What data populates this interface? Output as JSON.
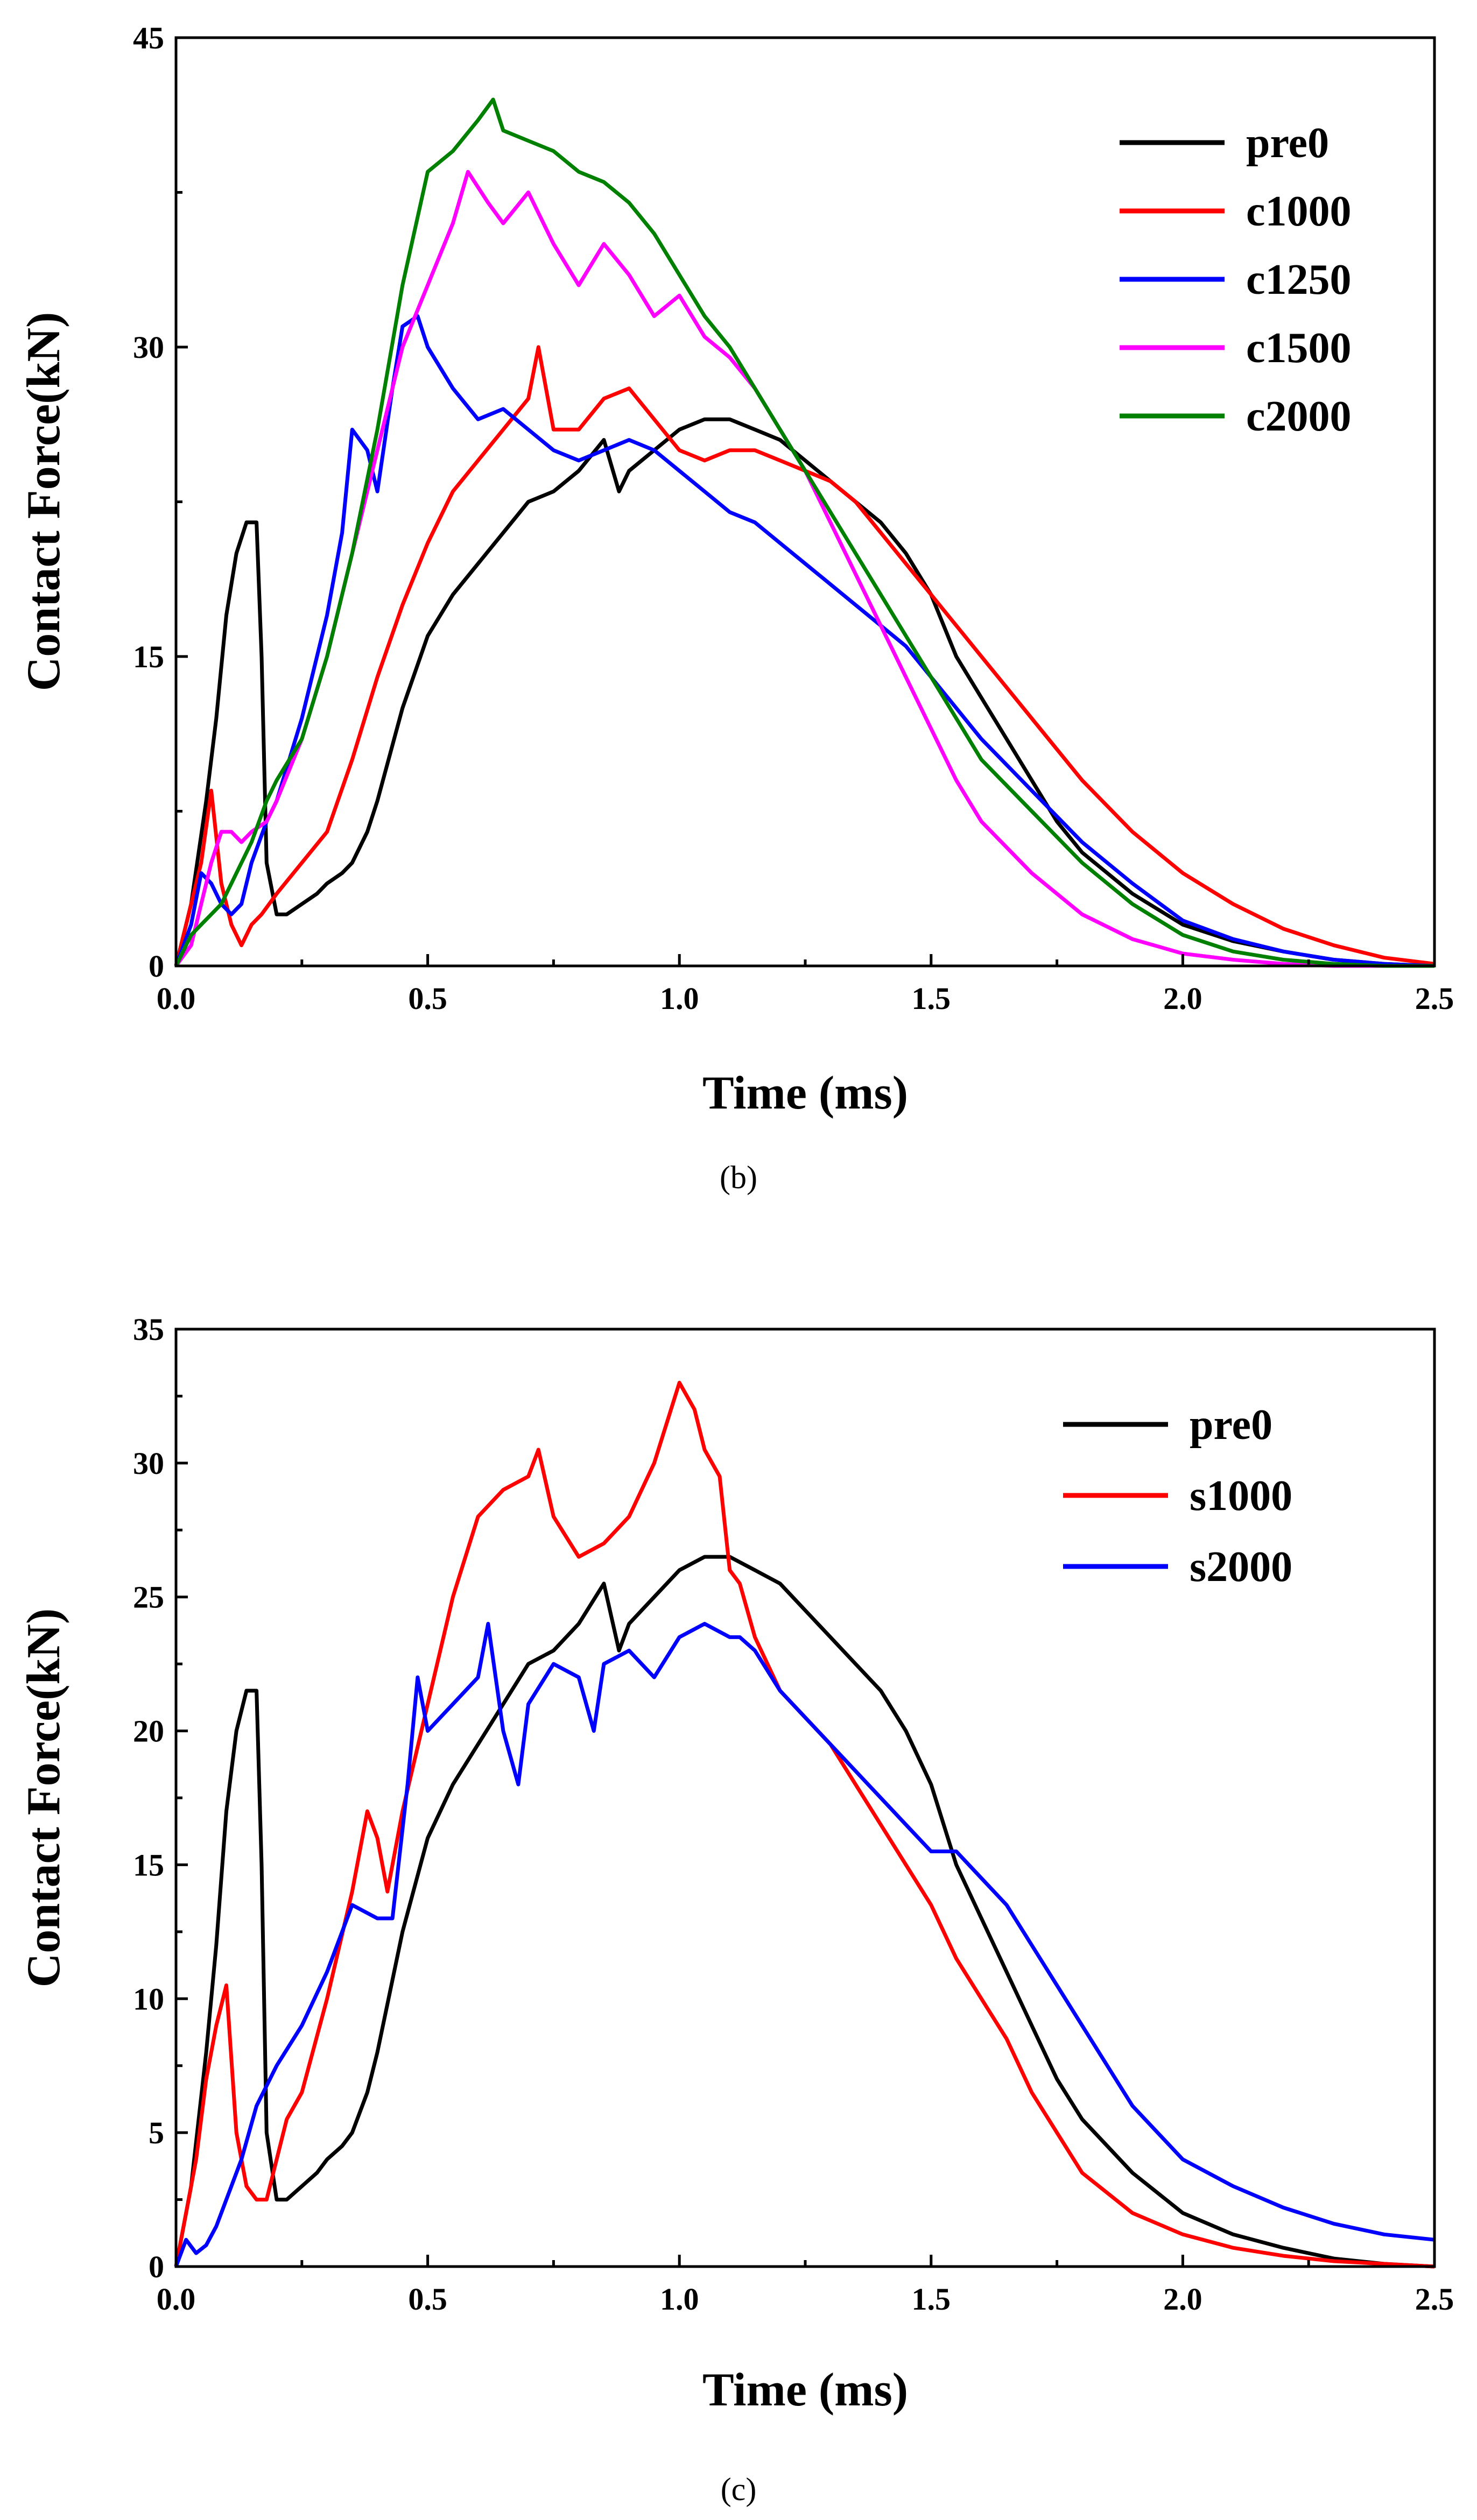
{
  "chart_data": [
    {
      "panel": "(b)",
      "type": "line",
      "xlabel": "Time (ms)",
      "ylabel": "Contact Force(kN)",
      "xlim": [
        0,
        2.5
      ],
      "ylim": [
        0,
        45
      ],
      "xticks": [
        "0.0",
        "0.5",
        "1.0",
        "1.5",
        "2.0",
        "2.5"
      ],
      "yticks": [
        "0",
        "15",
        "30",
        "45"
      ],
      "legend_position": "top-right",
      "series": [
        {
          "name": "pre0",
          "color": "#000000",
          "x": [
            0,
            0.03,
            0.06,
            0.08,
            0.1,
            0.12,
            0.14,
            0.16,
            0.17,
            0.18,
            0.2,
            0.22,
            0.25,
            0.28,
            0.3,
            0.33,
            0.35,
            0.38,
            0.4,
            0.45,
            0.5,
            0.55,
            0.6,
            0.65,
            0.7,
            0.75,
            0.8,
            0.85,
            0.88,
            0.9,
            0.95,
            1.0,
            1.05,
            1.1,
            1.15,
            1.2,
            1.25,
            1.3,
            1.35,
            1.4,
            1.45,
            1.5,
            1.55,
            1.6,
            1.65,
            1.7,
            1.75,
            1.8,
            1.9,
            2.0,
            2.1,
            2.2,
            2.3,
            2.4,
            2.5
          ],
          "y": [
            0,
            3,
            8,
            12,
            17,
            20,
            21.5,
            21.5,
            15,
            5,
            2.5,
            2.5,
            3,
            3.5,
            4,
            4.5,
            5,
            6.5,
            8,
            12.5,
            16,
            18,
            19.5,
            21,
            22.5,
            23,
            24,
            25.5,
            23,
            24,
            25,
            26,
            26.5,
            26.5,
            26,
            25.5,
            24.5,
            23.5,
            22.5,
            21.5,
            20,
            18,
            15,
            13,
            11,
            9,
            7,
            5.5,
            3.5,
            2,
            1.2,
            0.7,
            0.3,
            0.1,
            0
          ]
        },
        {
          "name": "c1000",
          "color": "#ff0000",
          "x": [
            0,
            0.03,
            0.05,
            0.07,
            0.09,
            0.11,
            0.13,
            0.15,
            0.17,
            0.2,
            0.25,
            0.3,
            0.35,
            0.4,
            0.45,
            0.5,
            0.55,
            0.6,
            0.65,
            0.7,
            0.72,
            0.75,
            0.8,
            0.85,
            0.9,
            0.95,
            1.0,
            1.05,
            1.1,
            1.15,
            1.2,
            1.25,
            1.3,
            1.35,
            1.4,
            1.45,
            1.5,
            1.55,
            1.6,
            1.65,
            1.7,
            1.75,
            1.8,
            1.9,
            2.0,
            2.1,
            2.2,
            2.3,
            2.4,
            2.5
          ],
          "y": [
            0,
            3,
            5,
            8.5,
            4,
            2,
            1,
            2,
            2.5,
            3.5,
            5,
            6.5,
            10,
            14,
            17.5,
            20.5,
            23,
            24.5,
            26,
            27.5,
            30,
            26,
            26,
            27.5,
            28,
            26.5,
            25,
            24.5,
            25,
            25,
            24.5,
            24,
            23.5,
            22.5,
            21,
            19.5,
            18,
            16.5,
            15,
            13.5,
            12,
            10.5,
            9,
            6.5,
            4.5,
            3,
            1.8,
            1,
            0.4,
            0.1
          ]
        },
        {
          "name": "c1250",
          "color": "#0000ff",
          "x": [
            0,
            0.03,
            0.05,
            0.07,
            0.09,
            0.11,
            0.13,
            0.15,
            0.18,
            0.2,
            0.25,
            0.3,
            0.33,
            0.35,
            0.38,
            0.4,
            0.43,
            0.45,
            0.48,
            0.5,
            0.55,
            0.6,
            0.65,
            0.7,
            0.75,
            0.8,
            0.85,
            0.9,
            0.95,
            1.0,
            1.05,
            1.1,
            1.15,
            1.2,
            1.25,
            1.3,
            1.35,
            1.4,
            1.45,
            1.5,
            1.55,
            1.6,
            1.7,
            1.8,
            1.9,
            2.0,
            2.1,
            2.2,
            2.3,
            2.4,
            2.5
          ],
          "y": [
            0,
            2,
            4.5,
            4,
            3,
            2.5,
            3,
            5,
            7,
            8,
            12,
            17,
            21,
            26,
            25,
            23,
            28,
            31,
            31.5,
            30,
            28,
            26.5,
            27,
            26,
            25,
            24.5,
            25,
            25.5,
            25,
            24,
            23,
            22,
            21.5,
            20.5,
            19.5,
            18.5,
            17.5,
            16.5,
            15.5,
            14,
            12.5,
            11,
            8.5,
            6,
            4,
            2.2,
            1.3,
            0.7,
            0.3,
            0.1,
            0
          ]
        },
        {
          "name": "c1500",
          "color": "#ff00ff",
          "x": [
            0,
            0.03,
            0.05,
            0.07,
            0.09,
            0.11,
            0.13,
            0.15,
            0.18,
            0.2,
            0.25,
            0.3,
            0.35,
            0.4,
            0.45,
            0.5,
            0.55,
            0.58,
            0.62,
            0.65,
            0.7,
            0.75,
            0.8,
            0.85,
            0.9,
            0.95,
            1.0,
            1.05,
            1.1,
            1.15,
            1.2,
            1.25,
            1.3,
            1.35,
            1.4,
            1.45,
            1.5,
            1.55,
            1.6,
            1.7,
            1.8,
            1.9,
            2.0,
            2.1,
            2.2,
            2.3,
            2.4,
            2.5
          ],
          "y": [
            0,
            1,
            3,
            5,
            6.5,
            6.5,
            6,
            6.5,
            7,
            8,
            11,
            15,
            20,
            25,
            30,
            33,
            36,
            38.5,
            37,
            36,
            37.5,
            35,
            33,
            35,
            33.5,
            31.5,
            32.5,
            30.5,
            29.5,
            28,
            26,
            24,
            21.5,
            19,
            16.5,
            14,
            11.5,
            9,
            7,
            4.5,
            2.5,
            1.3,
            0.6,
            0.3,
            0.1,
            0,
            0,
            0
          ]
        },
        {
          "name": "c2000",
          "color": "#008000",
          "x": [
            0,
            0.03,
            0.05,
            0.07,
            0.09,
            0.11,
            0.13,
            0.15,
            0.18,
            0.2,
            0.25,
            0.3,
            0.35,
            0.4,
            0.45,
            0.5,
            0.55,
            0.6,
            0.63,
            0.65,
            0.7,
            0.75,
            0.8,
            0.85,
            0.9,
            0.95,
            1.0,
            1.05,
            1.1,
            1.15,
            1.2,
            1.25,
            1.3,
            1.35,
            1.4,
            1.45,
            1.5,
            1.55,
            1.6,
            1.7,
            1.8,
            1.9,
            2.0,
            2.1,
            2.2,
            2.3,
            2.4,
            2.5
          ],
          "y": [
            0,
            1.5,
            2,
            2.5,
            3,
            4,
            5,
            6,
            8,
            9,
            11,
            15,
            20,
            26,
            33,
            38.5,
            39.5,
            41,
            42,
            40.5,
            40,
            39.5,
            38.5,
            38,
            37,
            35.5,
            33.5,
            31.5,
            30,
            28,
            26,
            24,
            22,
            20,
            18,
            16,
            14,
            12,
            10,
            7.5,
            5,
            3,
            1.5,
            0.7,
            0.3,
            0.1,
            0,
            0
          ]
        }
      ]
    },
    {
      "panel": "(c)",
      "type": "line",
      "xlabel": "Time (ms)",
      "ylabel": "Contact Force(kN)",
      "xlim": [
        0,
        2.5
      ],
      "ylim": [
        0,
        35
      ],
      "xticks": [
        "0.0",
        "0.5",
        "1.0",
        "1.5",
        "2.0",
        "2.5"
      ],
      "yticks": [
        "0",
        "5",
        "10",
        "15",
        "20",
        "25",
        "30",
        "35"
      ],
      "legend_position": "top-right",
      "series": [
        {
          "name": "pre0",
          "color": "#000000",
          "x": [
            0,
            0.03,
            0.06,
            0.08,
            0.1,
            0.12,
            0.14,
            0.16,
            0.17,
            0.18,
            0.2,
            0.22,
            0.25,
            0.28,
            0.3,
            0.33,
            0.35,
            0.38,
            0.4,
            0.45,
            0.5,
            0.55,
            0.6,
            0.65,
            0.7,
            0.75,
            0.8,
            0.85,
            0.88,
            0.9,
            0.95,
            1.0,
            1.05,
            1.1,
            1.15,
            1.2,
            1.25,
            1.3,
            1.35,
            1.4,
            1.45,
            1.5,
            1.55,
            1.6,
            1.65,
            1.7,
            1.75,
            1.8,
            1.9,
            2.0,
            2.1,
            2.2,
            2.3,
            2.4,
            2.5
          ],
          "y": [
            0,
            3,
            8,
            12,
            17,
            20,
            21.5,
            21.5,
            15,
            5,
            2.5,
            2.5,
            3,
            3.5,
            4,
            4.5,
            5,
            6.5,
            8,
            12.5,
            16,
            18,
            19.5,
            21,
            22.5,
            23,
            24,
            25.5,
            23,
            24,
            25,
            26,
            26.5,
            26.5,
            26,
            25.5,
            24.5,
            23.5,
            22.5,
            21.5,
            20,
            18,
            15,
            13,
            11,
            9,
            7,
            5.5,
            3.5,
            2,
            1.2,
            0.7,
            0.3,
            0.1,
            0
          ]
        },
        {
          "name": "s1000",
          "color": "#ff0000",
          "x": [
            0,
            0.02,
            0.04,
            0.06,
            0.08,
            0.1,
            0.12,
            0.14,
            0.16,
            0.18,
            0.2,
            0.22,
            0.25,
            0.3,
            0.35,
            0.38,
            0.4,
            0.42,
            0.45,
            0.5,
            0.55,
            0.6,
            0.65,
            0.7,
            0.72,
            0.75,
            0.8,
            0.85,
            0.9,
            0.95,
            1.0,
            1.03,
            1.05,
            1.08,
            1.1,
            1.12,
            1.15,
            1.2,
            1.25,
            1.3,
            1.35,
            1.4,
            1.45,
            1.5,
            1.55,
            1.6,
            1.65,
            1.7,
            1.75,
            1.8,
            1.9,
            2.0,
            2.1,
            2.2,
            2.3,
            2.4,
            2.5
          ],
          "y": [
            0,
            2,
            4,
            7,
            9,
            10.5,
            5,
            3,
            2.5,
            2.5,
            4,
            5.5,
            6.5,
            10,
            14,
            17,
            16,
            14,
            17,
            21,
            25,
            28,
            29,
            29.5,
            30.5,
            28,
            26.5,
            27,
            28,
            30,
            33,
            32,
            30.5,
            29.5,
            26,
            25.5,
            23.5,
            21.5,
            20.5,
            19.5,
            18,
            16.5,
            15,
            13.5,
            11.5,
            10,
            8.5,
            6.5,
            5,
            3.5,
            2,
            1.2,
            0.7,
            0.4,
            0.2,
            0.1,
            0
          ]
        },
        {
          "name": "s2000",
          "color": "#0000ff",
          "x": [
            0,
            0.02,
            0.04,
            0.06,
            0.08,
            0.1,
            0.13,
            0.16,
            0.2,
            0.25,
            0.3,
            0.35,
            0.4,
            0.43,
            0.46,
            0.48,
            0.5,
            0.55,
            0.6,
            0.62,
            0.65,
            0.68,
            0.7,
            0.75,
            0.8,
            0.83,
            0.85,
            0.9,
            0.95,
            1.0,
            1.05,
            1.1,
            1.12,
            1.15,
            1.2,
            1.25,
            1.3,
            1.35,
            1.4,
            1.45,
            1.5,
            1.55,
            1.6,
            1.65,
            1.7,
            1.75,
            1.8,
            1.85,
            1.9,
            2.0,
            2.1,
            2.2,
            2.3,
            2.4,
            2.5
          ],
          "y": [
            0,
            1,
            0.5,
            0.8,
            1.5,
            2.5,
            4,
            6,
            7.5,
            9,
            11,
            13.5,
            13,
            13,
            18,
            22,
            20,
            21,
            22,
            24,
            20,
            18,
            21,
            22.5,
            22,
            20,
            22.5,
            23,
            22,
            23.5,
            24,
            23.5,
            23.5,
            23,
            21.5,
            20.5,
            19.5,
            18.5,
            17.5,
            16.5,
            15.5,
            15.5,
            14.5,
            13.5,
            12,
            10.5,
            9,
            7.5,
            6,
            4,
            3,
            2.2,
            1.6,
            1.2,
            1
          ]
        }
      ]
    }
  ],
  "captions": [
    "(b)",
    "(c)"
  ]
}
